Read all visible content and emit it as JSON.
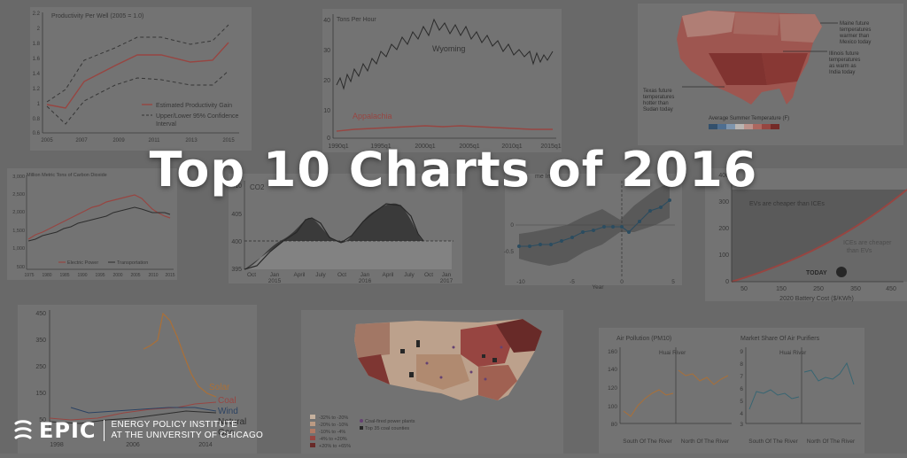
{
  "title": "Top 10 Charts of 2016",
  "logo": {
    "word": "EPIC",
    "line1": "ENERGY POLICY INSTITUTE",
    "line2": "AT THE UNIVERSITY OF CHICAGO"
  },
  "chart1": {
    "title": "Productivity Per Well (2005 = 1.0)",
    "yticks": [
      "2.2",
      "2",
      "1.8",
      "1.6",
      "1.4",
      "1.2",
      "1",
      "0.8",
      "0.6"
    ],
    "xticks": [
      "2005",
      "2007",
      "2009",
      "2011",
      "2013",
      "2015"
    ],
    "legend1": "Estimated Productivity Gain",
    "legend2a": "Upper/Lower 95% Confidence",
    "legend2b": "Interval"
  },
  "chart2": {
    "title": "Tons Per Hour",
    "yticks": [
      "40",
      "30",
      "20",
      "10",
      "0"
    ],
    "xticks": [
      "1990q1",
      "1995q1",
      "2000q1",
      "2005q1",
      "2010q1",
      "2015q1"
    ],
    "label_wy": "Wyoming",
    "label_ap": "Appalachia"
  },
  "chart3": {
    "note1a": "Maine future",
    "note1b": "temperatures",
    "note1c": "warmer than",
    "note1d": "Mexico today",
    "note2a": "Illinois future",
    "note2b": "temperatures",
    "note2c": "as warm as",
    "note2d": "India today",
    "note3a": "Texas future",
    "note3b": "temperatures",
    "note3c": "hotter than",
    "note3d": "Sudan today",
    "legend": "Average Summer Temperature (F)"
  },
  "chart4": {
    "title": "Million Metric Tons of Carbon Dioxide",
    "yticks": [
      "3,000",
      "2,500",
      "2,000",
      "1,500",
      "1,000",
      "500"
    ],
    "xticks": [
      "1975",
      "1980",
      "1985",
      "1990",
      "1995",
      "2000",
      "2005",
      "2010",
      "2015"
    ],
    "legend1": "Electric Power",
    "legend2": "Transportation"
  },
  "chart5": {
    "title": "CO2",
    "yticks": [
      "410",
      "405",
      "400",
      "395"
    ],
    "xticks": [
      "Oct",
      "Jan",
      "April",
      "July",
      "Oct",
      "Jan",
      "April",
      "July",
      "Oct",
      "Jan"
    ],
    "years": [
      "2015",
      "2016",
      "2017"
    ]
  },
  "chart6": {
    "title": "me Inco",
    "yticks": [
      "0",
      "-0.5"
    ],
    "xticks": [
      "-10",
      "-5",
      "0",
      "5"
    ],
    "xlabel": "Year"
  },
  "chart7": {
    "yticks": [
      "400",
      "300",
      "200",
      "100",
      "0"
    ],
    "xticks": [
      "50",
      "150",
      "250",
      "350",
      "450"
    ],
    "xlabel": "2020 Battery Cost ($/KWh)",
    "label_ev": "EVs are cheaper than ICEs",
    "label_ice1": "ICEs are cheaper",
    "label_ice2": "than EVs",
    "label_today": "TODAY"
  },
  "chart8": {
    "yticks": [
      "450",
      "350",
      "250",
      "150",
      "50"
    ],
    "xticks": [
      "1998",
      "2006",
      "2014"
    ],
    "solar": "Solar",
    "coal": "Coal",
    "wind": "Wind",
    "gas1": "Natural",
    "gas2": "Gas"
  },
  "chart9": {
    "legend": [
      "-32% to -20%",
      "-20% to -10%",
      "-10% to -4%",
      "-4% to +20%",
      "+20% to +65%"
    ],
    "legend_plants": "Coal-fired power plants",
    "legend_counties": "Top 35 coal counties"
  },
  "chart10": {
    "title1": "Air Pollution (PM10)",
    "title2": "Market Share Of Air Purifiers",
    "sub1": "Huai River",
    "sub2": "Huai River",
    "yticks1": [
      "160",
      "140",
      "120",
      "100",
      "80"
    ],
    "yticks2": [
      "9",
      "8",
      "7",
      "6",
      "5",
      "4",
      "3"
    ],
    "xlab1a": "South Of The River",
    "xlab1b": "North Of The River",
    "xlab2a": "South Of The River",
    "xlab2b": "North Of The River"
  },
  "colors": {
    "red": "#a9413c",
    "dark": "#333333",
    "title": "#ffffff"
  }
}
